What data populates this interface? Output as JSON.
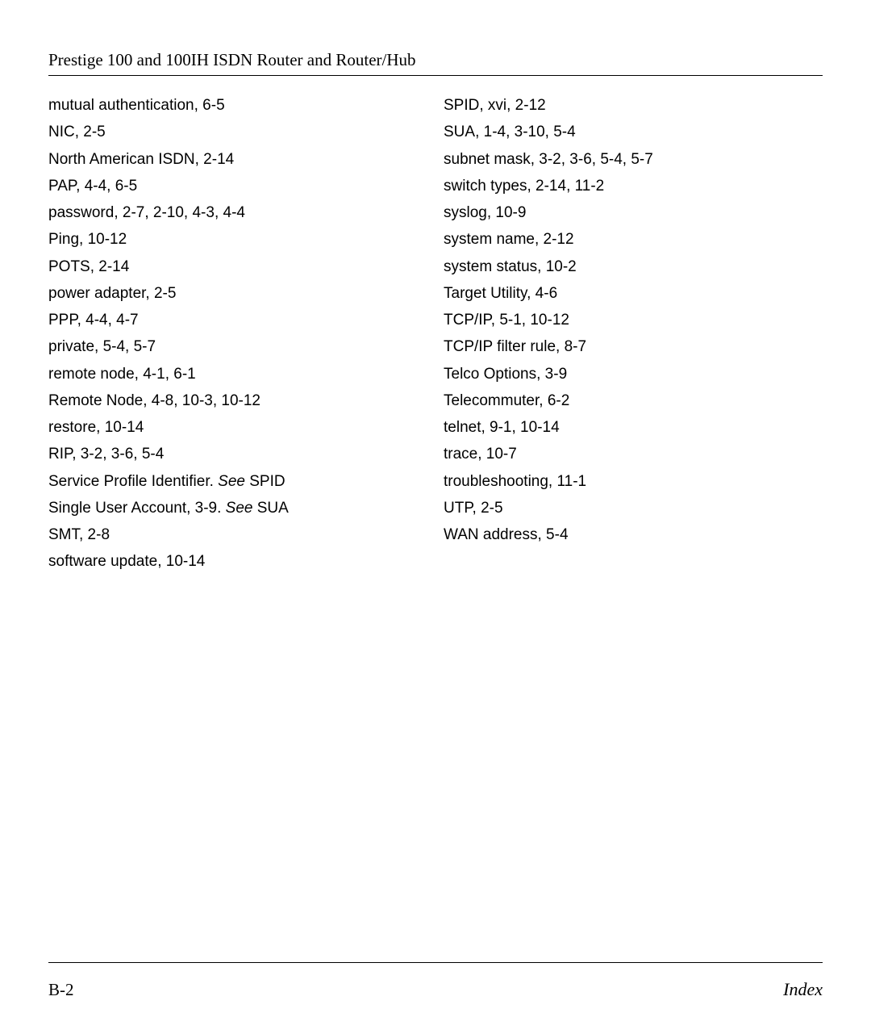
{
  "header": {
    "title": "Prestige 100 and 100IH ISDN Router and Router/Hub"
  },
  "footer": {
    "page": "B-2",
    "section": "Index"
  },
  "index": {
    "left": [
      {
        "text": "mutual authentication, 6-5"
      },
      {
        "text": "NIC, 2-5"
      },
      {
        "text": "North American ISDN, 2-14"
      },
      {
        "text": "PAP, 4-4, 6-5"
      },
      {
        "text": "password, 2-7, 2-10, 4-3, 4-4"
      },
      {
        "text": "Ping, 10-12"
      },
      {
        "text": "POTS, 2-14"
      },
      {
        "text": "power adapter, 2-5"
      },
      {
        "text": "PPP, 4-4, 4-7"
      },
      {
        "text": "private, 5-4, 5-7"
      },
      {
        "text": "remote node, 4-1, 6-1"
      },
      {
        "text": "Remote Node, 4-8, 10-3, 10-12"
      },
      {
        "text": "restore, 10-14"
      },
      {
        "text": "RIP, 3-2, 3-6, 5-4"
      },
      {
        "prefix": "Service Profile Identifier. ",
        "see": "See",
        "suffix": " SPID"
      },
      {
        "prefix": "Single User Account, 3-9. ",
        "see": "See",
        "suffix": " SUA"
      },
      {
        "text": "SMT, 2-8"
      },
      {
        "text": "software update, 10-14"
      }
    ],
    "right": [
      {
        "text": "SPID, xvi, 2-12"
      },
      {
        "text": "SUA, 1-4, 3-10, 5-4"
      },
      {
        "text": "subnet mask, 3-2, 3-6, 5-4, 5-7"
      },
      {
        "text": "switch types, 2-14, 11-2"
      },
      {
        "text": "syslog, 10-9"
      },
      {
        "text": "system name, 2-12"
      },
      {
        "text": "system status, 10-2"
      },
      {
        "text": "Target Utility, 4-6"
      },
      {
        "text": "TCP/IP, 5-1, 10-12"
      },
      {
        "text": "TCP/IP filter rule, 8-7"
      },
      {
        "text": "Telco Options, 3-9"
      },
      {
        "text": "Telecommuter, 6-2"
      },
      {
        "text": "telnet, 9-1, 10-14"
      },
      {
        "text": "trace, 10-7"
      },
      {
        "text": "troubleshooting, 11-1"
      },
      {
        "text": "UTP, 2-5"
      },
      {
        "text": "WAN address, 5-4"
      }
    ]
  }
}
